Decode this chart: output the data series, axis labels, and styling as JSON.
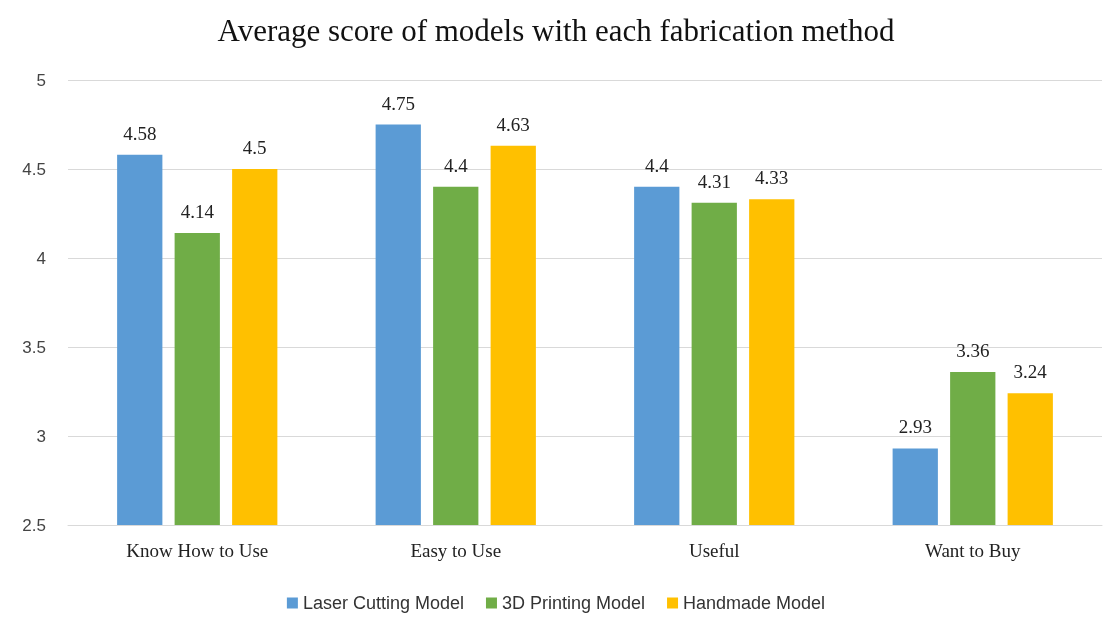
{
  "chart_data": {
    "type": "bar",
    "title": "Average score of models with each fabrication method",
    "categories": [
      "Know How to Use",
      "Easy to Use",
      "Useful",
      "Want to Buy"
    ],
    "series": [
      {
        "name": "Laser Cutting Model",
        "color": "#5b9bd5",
        "values": [
          4.58,
          4.75,
          4.4,
          2.93
        ]
      },
      {
        "name": "3D Printing Model",
        "color": "#70ad47",
        "values": [
          4.14,
          4.4,
          4.31,
          3.36
        ]
      },
      {
        "name": "Handmade Model",
        "color": "#ffc000",
        "values": [
          4.5,
          4.63,
          4.33,
          3.24
        ]
      }
    ],
    "ylim": [
      2.5,
      5
    ],
    "yticks": [
      2.5,
      3,
      3.5,
      4,
      4.5,
      5
    ],
    "grid": "y",
    "legend": "bottom",
    "data_labels": true
  }
}
